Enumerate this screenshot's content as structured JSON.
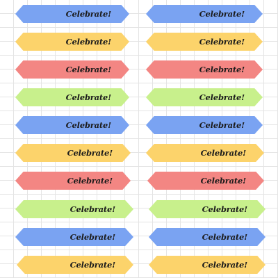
{
  "page": {
    "background": "#ffffff",
    "grid_color": "#e4e4e4"
  },
  "banner_colors": {
    "blue": "#7aa3f2",
    "yellow": "#fcd36b",
    "red": "#f38683",
    "green": "#c8f08c"
  },
  "banners": [
    {
      "row": 1,
      "column": "left",
      "color": "blue",
      "label": "Celebrate!"
    },
    {
      "row": 1,
      "column": "right",
      "color": "blue",
      "label": "Celebrate!"
    },
    {
      "row": 2,
      "column": "left",
      "color": "yellow",
      "label": "Celebrate!"
    },
    {
      "row": 2,
      "column": "right",
      "color": "yellow",
      "label": "Celebrate!"
    },
    {
      "row": 3,
      "column": "left",
      "color": "red",
      "label": "Celebrate!"
    },
    {
      "row": 3,
      "column": "right",
      "color": "red",
      "label": "Celebrate!"
    },
    {
      "row": 4,
      "column": "left",
      "color": "green",
      "label": "Celebrate!"
    },
    {
      "row": 4,
      "column": "right",
      "color": "green",
      "label": "Celebrate!"
    },
    {
      "row": 5,
      "column": "left",
      "color": "blue",
      "label": "Celebrate!"
    },
    {
      "row": 5,
      "column": "right",
      "color": "blue",
      "label": "Celebrate!"
    },
    {
      "row": 6,
      "column": "left",
      "color": "yellow",
      "label": "Celebrate!"
    },
    {
      "row": 6,
      "column": "right",
      "color": "yellow",
      "label": "Celebrate!"
    },
    {
      "row": 7,
      "column": "left",
      "color": "red",
      "label": "Celebrate!"
    },
    {
      "row": 7,
      "column": "right",
      "color": "red",
      "label": "Celebrate!"
    },
    {
      "row": 8,
      "column": "left",
      "color": "green",
      "label": "Celebrate!"
    },
    {
      "row": 8,
      "column": "right",
      "color": "green",
      "label": "Celebrate!"
    },
    {
      "row": 9,
      "column": "left",
      "color": "blue",
      "label": "Celebrate!"
    },
    {
      "row": 9,
      "column": "right",
      "color": "blue",
      "label": "Celebrate!"
    },
    {
      "row": 10,
      "column": "left",
      "color": "yellow",
      "label": "Celebrate!"
    },
    {
      "row": 10,
      "column": "right",
      "color": "yellow",
      "label": "Celebrate!"
    }
  ]
}
